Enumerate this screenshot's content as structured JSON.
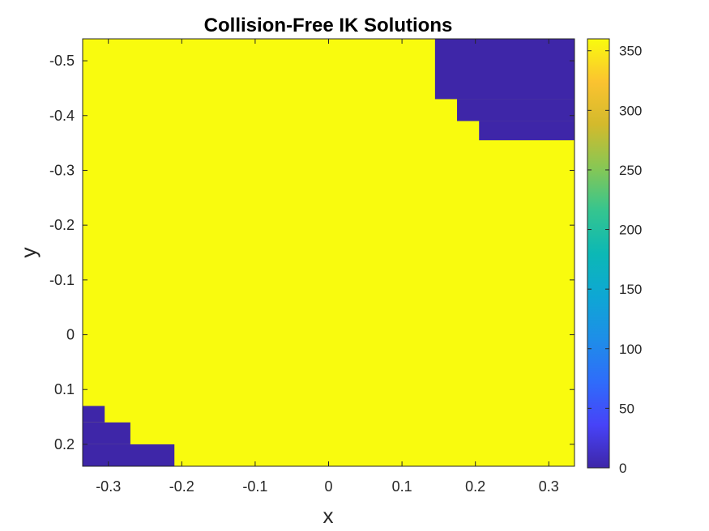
{
  "chart_data": {
    "type": "heatmap",
    "title": "Collision-Free IK Solutions",
    "xlabel": "x",
    "ylabel": "y",
    "xlim": [
      -0.335,
      0.335
    ],
    "ylim": [
      -0.54,
      0.24
    ],
    "y_axis_reversed": true,
    "xticks": [
      -0.3,
      -0.2,
      -0.1,
      0,
      0.1,
      0.2,
      0.3
    ],
    "xtick_labels": [
      "-0.3",
      "-0.2",
      "-0.1",
      "0",
      "0.1",
      "0.2",
      "0.3"
    ],
    "yticks": [
      -0.5,
      -0.4,
      -0.3,
      -0.2,
      -0.1,
      0,
      0.1,
      0.2
    ],
    "ytick_labels": [
      "-0.5",
      "-0.4",
      "-0.3",
      "-0.2",
      "-0.1",
      "0",
      "0.1",
      "0.2"
    ],
    "background_value": 360,
    "regions": [
      {
        "x": [
          0.145,
          0.335
        ],
        "y": [
          -0.54,
          -0.43
        ],
        "value": 0
      },
      {
        "x": [
          0.175,
          0.335
        ],
        "y": [
          -0.43,
          -0.39
        ],
        "value": 0
      },
      {
        "x": [
          0.205,
          0.335
        ],
        "y": [
          -0.39,
          -0.355
        ],
        "value": 0
      },
      {
        "x": [
          -0.335,
          -0.305
        ],
        "y": [
          0.13,
          0.16
        ],
        "value": 0
      },
      {
        "x": [
          -0.335,
          -0.27
        ],
        "y": [
          0.16,
          0.2
        ],
        "value": 0
      },
      {
        "x": [
          -0.335,
          -0.21
        ],
        "y": [
          0.2,
          0.24
        ],
        "value": 0
      }
    ],
    "colorbar": {
      "min": 0,
      "max": 360,
      "ticks": [
        0,
        50,
        100,
        150,
        200,
        250,
        300,
        350
      ],
      "tick_labels": [
        "0",
        "50",
        "100",
        "150",
        "200",
        "250",
        "300",
        "350"
      ],
      "colormap": "parula"
    },
    "colors": {
      "high": "#f9fb0e",
      "low": "#3e26a8"
    }
  }
}
